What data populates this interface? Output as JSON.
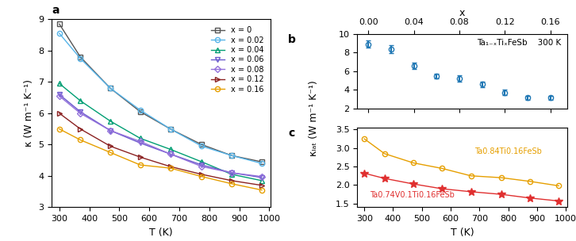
{
  "chart_data": [
    {
      "type": "line",
      "xlabel": "T (K)",
      "ylabel": "κ (W m⁻¹ K⁻¹)",
      "x": [
        300,
        370,
        470,
        570,
        670,
        775,
        875,
        975
      ],
      "series": [
        {
          "name": "x = 0",
          "color": "#555555",
          "marker": "square",
          "values": [
            8.85,
            7.8,
            6.8,
            6.05,
            5.5,
            5.0,
            4.65,
            4.45
          ]
        },
        {
          "name": "x = 0.02",
          "color": "#56b4e9",
          "marker": "circle",
          "values": [
            8.55,
            7.75,
            6.8,
            6.1,
            5.5,
            4.95,
            4.65,
            4.4
          ]
        },
        {
          "name": "x = 0.04",
          "color": "#009e73",
          "marker": "triangle_up",
          "values": [
            6.95,
            6.4,
            5.75,
            5.2,
            4.85,
            4.45,
            4.05,
            3.85
          ]
        },
        {
          "name": "x = 0.06",
          "color": "#6a5acd",
          "marker": "triangle_down",
          "values": [
            6.6,
            6.05,
            5.45,
            5.05,
            4.7,
            4.35,
            4.1,
            3.95
          ]
        },
        {
          "name": "x = 0.08",
          "color": "#9370db",
          "marker": "diamond",
          "values": [
            6.55,
            6.0,
            5.45,
            5.1,
            4.7,
            4.3,
            4.1,
            3.98
          ]
        },
        {
          "name": "x = 0.12",
          "color": "#8b2222",
          "marker": "triangle_right",
          "values": [
            6.0,
            5.5,
            4.95,
            4.6,
            4.3,
            4.05,
            3.85,
            3.7
          ]
        },
        {
          "name": "x = 0.16",
          "color": "#e69f00",
          "marker": "circle",
          "values": [
            5.5,
            5.15,
            4.75,
            4.35,
            4.25,
            3.98,
            3.75,
            3.55
          ]
        }
      ],
      "xlim": [
        275,
        1005
      ],
      "ylim": [
        3,
        9
      ],
      "xticks": [
        300,
        400,
        500,
        600,
        700,
        800,
        900,
        1000
      ],
      "yticks": [
        3,
        4,
        5,
        6,
        7,
        8,
        9
      ],
      "legend": "upper right",
      "annotations": [
        "a"
      ]
    },
    {
      "type": "scatter",
      "xlabel": "x",
      "x": [
        0.0,
        0.02,
        0.04,
        0.06,
        0.08,
        0.1,
        0.12,
        0.14,
        0.16
      ],
      "values": [
        8.9,
        8.35,
        6.55,
        5.5,
        5.2,
        4.6,
        3.7,
        3.15,
        3.15
      ],
      "yerr": [
        0.35,
        0.45,
        0.35,
        0.25,
        0.35,
        0.3,
        0.3,
        0.2,
        0.2
      ],
      "marker": "circle",
      "xlim": [
        -0.01,
        0.175
      ],
      "ylim": [
        2,
        10
      ],
      "xticks": [
        {
          "value": 0.0,
          "label": "0.00"
        },
        {
          "value": 0.04,
          "label": "0.04"
        },
        {
          "value": 0.08,
          "label": "0.08"
        },
        {
          "value": 0.12,
          "label": "0.12"
        },
        {
          "value": 0.16,
          "label": "0.16"
        }
      ],
      "yticks": [
        2,
        4,
        6,
        8,
        10
      ],
      "annotations": [
        "b",
        "Ta₁₋ₓTiₓFeSb    300 K"
      ]
    },
    {
      "type": "line",
      "xlabel": "T (K)",
      "ylabel": "κₗₐₜ (W m⁻¹ K⁻¹)",
      "x": [
        300,
        370,
        470,
        570,
        670,
        775,
        875,
        975
      ],
      "series": [
        {
          "name": "Ta0.84Ti0.16FeSb",
          "color": "#e69f00",
          "marker": "circle",
          "values": [
            3.25,
            2.85,
            2.6,
            2.45,
            2.25,
            2.2,
            2.1,
            1.98
          ]
        },
        {
          "name": "Ta0.74V0.1Ti0.16FeSb",
          "color": "#e03030",
          "marker": "star",
          "values": [
            2.32,
            2.18,
            2.03,
            1.9,
            1.82,
            1.75,
            1.65,
            1.57
          ]
        }
      ],
      "xlim": [
        275,
        1005
      ],
      "ylim": [
        1.4,
        3.55
      ],
      "xticks": [
        300,
        400,
        500,
        600,
        700,
        800,
        900,
        1000
      ],
      "yticks": [
        1.5,
        2.0,
        2.5,
        3.0,
        3.5
      ],
      "annotations": [
        "c"
      ]
    }
  ]
}
